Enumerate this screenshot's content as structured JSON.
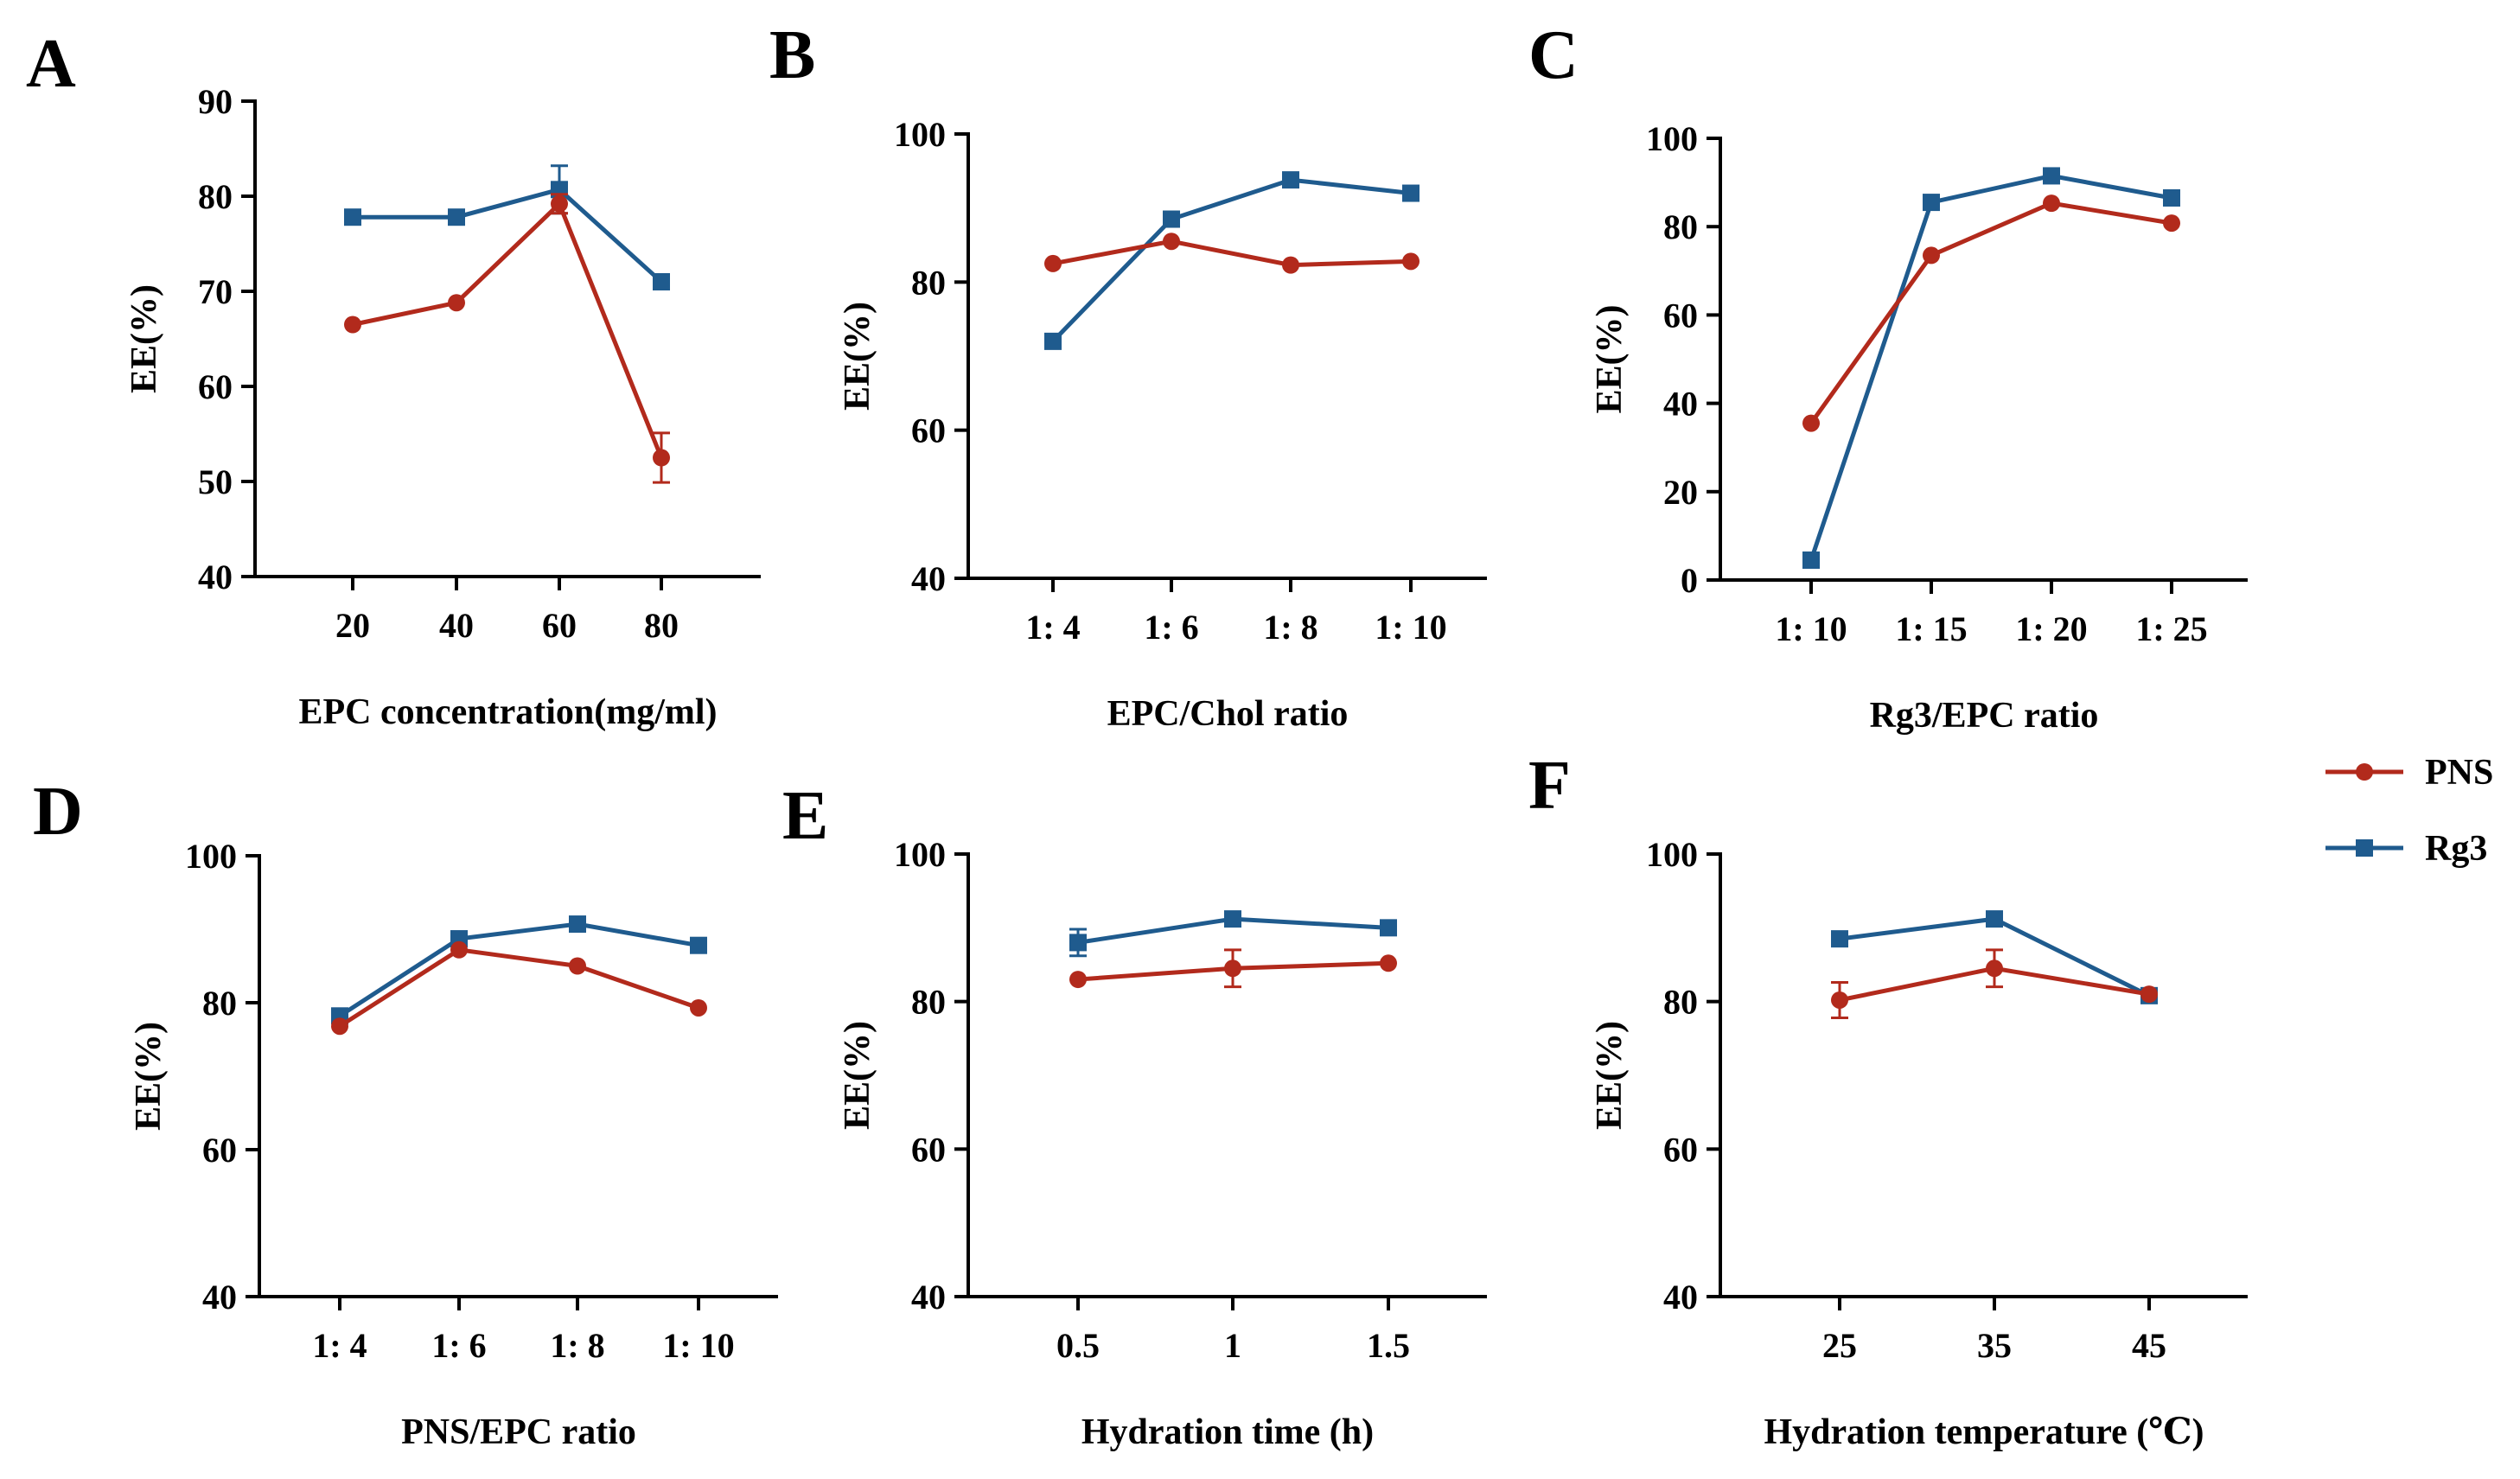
{
  "figure": {
    "colors": {
      "PNS": "#b22a1c",
      "Rg3": "#1f5b8e"
    },
    "legend": {
      "placement": "right",
      "items": [
        {
          "key": "PNS",
          "label": "PNS"
        },
        {
          "key": "Rg3",
          "label": "Rg3"
        }
      ]
    }
  },
  "chart_data": [
    {
      "panel": "A",
      "type": "line",
      "xlabel": "EPC concentration(mg/ml)",
      "ylabel": "EE(%)",
      "categories": [
        "20",
        "40",
        "60",
        "80"
      ],
      "ylim": [
        40,
        90
      ],
      "yticks": [
        40,
        50,
        60,
        70,
        80,
        90
      ],
      "series": [
        {
          "name": "PNS",
          "values": [
            66.5,
            68.8,
            79.2,
            52.5
          ],
          "errors": [
            0,
            0,
            1.0,
            2.6
          ]
        },
        {
          "name": "Rg3",
          "values": [
            77.8,
            77.8,
            80.7,
            71.0
          ],
          "errors": [
            0,
            0,
            2.5,
            0
          ]
        }
      ]
    },
    {
      "panel": "B",
      "type": "line",
      "xlabel": "EPC/Chol ratio",
      "ylabel": "EE(%)",
      "categories": [
        "1: 4",
        "1: 6",
        "1: 8",
        "1: 10"
      ],
      "ylim": [
        40,
        100
      ],
      "yticks": [
        40,
        60,
        80,
        100
      ],
      "series": [
        {
          "name": "PNS",
          "values": [
            82.5,
            85.5,
            82.3,
            82.8
          ],
          "errors": [
            0,
            0,
            0,
            0
          ]
        },
        {
          "name": "Rg3",
          "values": [
            72.0,
            88.5,
            93.8,
            92.0
          ],
          "errors": [
            0,
            0,
            0,
            0
          ]
        }
      ]
    },
    {
      "panel": "C",
      "type": "line",
      "xlabel": "Rg3/EPC ratio",
      "ylabel": "EE(%)",
      "categories": [
        "1: 10",
        "1: 15",
        "1: 20",
        "1: 25"
      ],
      "ylim": [
        0,
        100
      ],
      "yticks": [
        0,
        20,
        40,
        60,
        80,
        100
      ],
      "series": [
        {
          "name": "PNS",
          "values": [
            35.5,
            73.5,
            85.3,
            80.8
          ],
          "errors": [
            0,
            0,
            0,
            0
          ]
        },
        {
          "name": "Rg3",
          "values": [
            4.5,
            85.5,
            91.5,
            86.5
          ],
          "errors": [
            0,
            0,
            0,
            0
          ]
        }
      ]
    },
    {
      "panel": "D",
      "type": "line",
      "xlabel": "PNS/EPC ratio",
      "ylabel": "EE(%)",
      "categories": [
        "1: 4",
        "1: 6",
        "1: 8",
        "1: 10"
      ],
      "ylim": [
        40,
        100
      ],
      "yticks": [
        40,
        60,
        80,
        100
      ],
      "series": [
        {
          "name": "PNS",
          "values": [
            76.8,
            87.2,
            85.0,
            79.3
          ],
          "errors": [
            0,
            0,
            0,
            0
          ]
        },
        {
          "name": "Rg3",
          "values": [
            78.2,
            88.7,
            90.7,
            87.8
          ],
          "errors": [
            0,
            0,
            0,
            0
          ]
        }
      ]
    },
    {
      "panel": "E",
      "type": "line",
      "xlabel": "Hydration time (h)",
      "ylabel": "EE(%)",
      "categories": [
        "0.5",
        "1",
        "1.5"
      ],
      "ylim": [
        40,
        100
      ],
      "yticks": [
        40,
        60,
        80,
        100
      ],
      "series": [
        {
          "name": "PNS",
          "values": [
            83.0,
            84.5,
            85.2
          ],
          "errors": [
            0,
            2.5,
            0
          ]
        },
        {
          "name": "Rg3",
          "values": [
            88.0,
            91.2,
            90.0
          ],
          "errors": [
            1.8,
            0,
            0
          ]
        }
      ]
    },
    {
      "panel": "F",
      "type": "line",
      "xlabel": "Hydration temperature (℃)",
      "ylabel": "EE(%)",
      "categories": [
        "25",
        "35",
        "45"
      ],
      "ylim": [
        40,
        100
      ],
      "yticks": [
        40,
        60,
        80,
        100
      ],
      "series": [
        {
          "name": "PNS",
          "values": [
            80.2,
            84.5,
            81.0
          ],
          "errors": [
            2.4,
            2.5,
            0
          ]
        },
        {
          "name": "Rg3",
          "values": [
            88.5,
            91.2,
            80.8
          ],
          "errors": [
            0,
            0,
            0
          ]
        }
      ]
    }
  ]
}
